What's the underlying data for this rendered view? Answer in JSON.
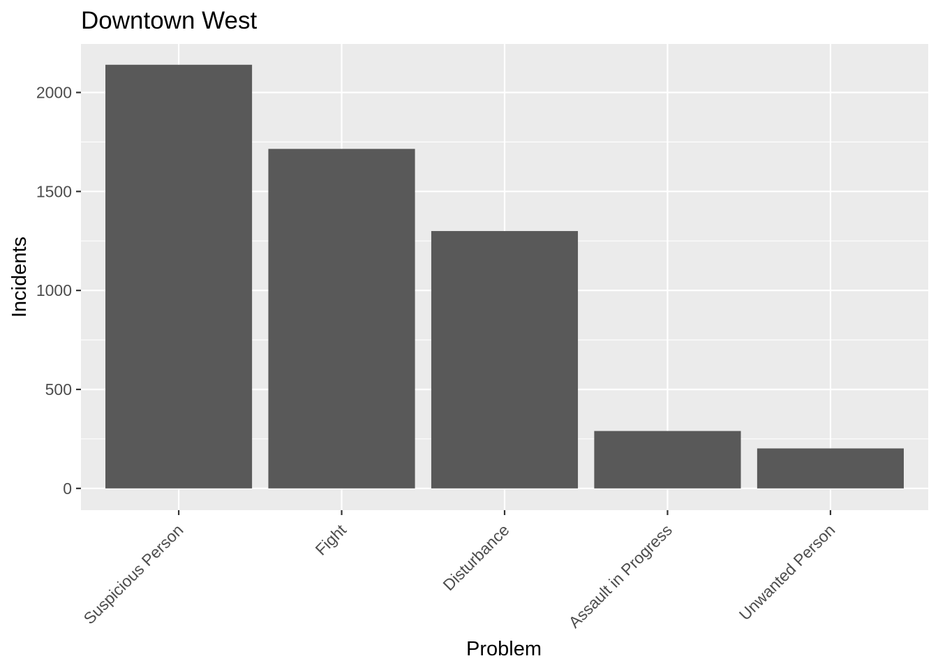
{
  "chart_data": {
    "type": "bar",
    "title": "Downtown West",
    "xlabel": "Problem",
    "ylabel": "Incidents",
    "categories": [
      "Suspicious Person",
      "Fight",
      "Disturbance",
      "Assault in Progress",
      "Unwanted Person"
    ],
    "values": [
      2140,
      1715,
      1300,
      290,
      202
    ],
    "ylim": [
      -110,
      2245
    ],
    "yticks": [
      0,
      500,
      1000,
      1500,
      2000
    ],
    "ytick_labels": [
      "0",
      "500",
      "1000",
      "1500",
      "2000"
    ],
    "grid": true,
    "legend": "none",
    "colors": {
      "bar": "#595959",
      "panel_background": "#ebebeb",
      "grid_line": "#ffffff",
      "tick_label": "#4d4d4d",
      "tick_mark": "#333333"
    }
  }
}
